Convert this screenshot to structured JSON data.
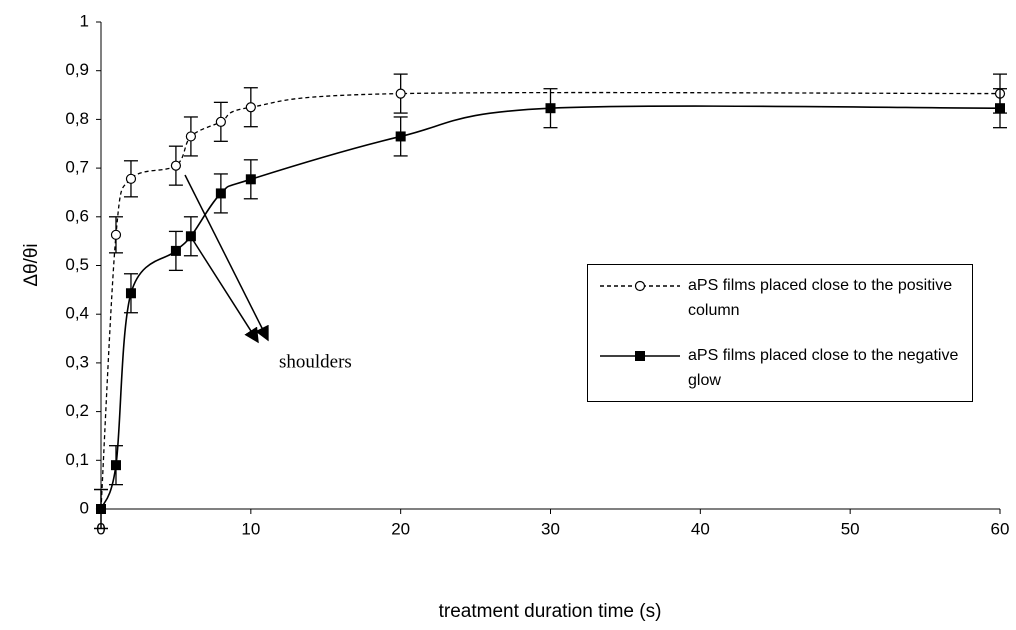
{
  "chart_data": {
    "type": "line",
    "x_label": "treatment duration time (s)",
    "y_label": "Δθ/θi",
    "xlim": [
      0,
      60
    ],
    "xticks": [
      0,
      10,
      20,
      30,
      40,
      50,
      60
    ],
    "ylim": [
      0,
      1
    ],
    "yticks": [
      0,
      {
        "value": 0.1,
        "label": "0,1"
      },
      {
        "value": 0.2,
        "label": "0,2"
      },
      {
        "value": 0.3,
        "label": "0,3"
      },
      {
        "value": 0.4,
        "label": "0,4"
      },
      {
        "value": 0.5,
        "label": "0,5"
      },
      {
        "value": 0.6,
        "label": "0,6"
      },
      {
        "value": 0.7,
        "label": "0,7"
      },
      {
        "value": 0.8,
        "label": "0,8"
      },
      {
        "value": 0.9,
        "label": "0,9"
      },
      1
    ],
    "annotation": "shoulders",
    "series": [
      {
        "name": "aPS films placed close to the positive column",
        "color": "#000000",
        "line": "dashed",
        "marker": "circle",
        "x": [
          0,
          1,
          2,
          5,
          6,
          8,
          10,
          20,
          60
        ],
        "values": [
          0,
          0.563,
          0.678,
          0.705,
          0.765,
          0.795,
          0.825,
          0.853,
          0.853
        ],
        "errors": [
          0.04,
          0.037,
          0.037,
          0.04,
          0.04,
          0.04,
          0.04,
          0.04,
          0.04
        ]
      },
      {
        "name": "aPS films placed close to the negative glow",
        "color": "#000000",
        "line": "solid",
        "marker": "square",
        "x": [
          0,
          1,
          2,
          5,
          6,
          8,
          10,
          20,
          30,
          60
        ],
        "values": [
          0,
          0.09,
          0.443,
          0.53,
          0.56,
          0.648,
          0.677,
          0.765,
          0.823,
          0.823
        ],
        "errors": [
          0.04,
          0.04,
          0.04,
          0.04,
          0.04,
          0.04,
          0.04,
          0.04,
          0.04,
          0.04
        ]
      }
    ]
  }
}
